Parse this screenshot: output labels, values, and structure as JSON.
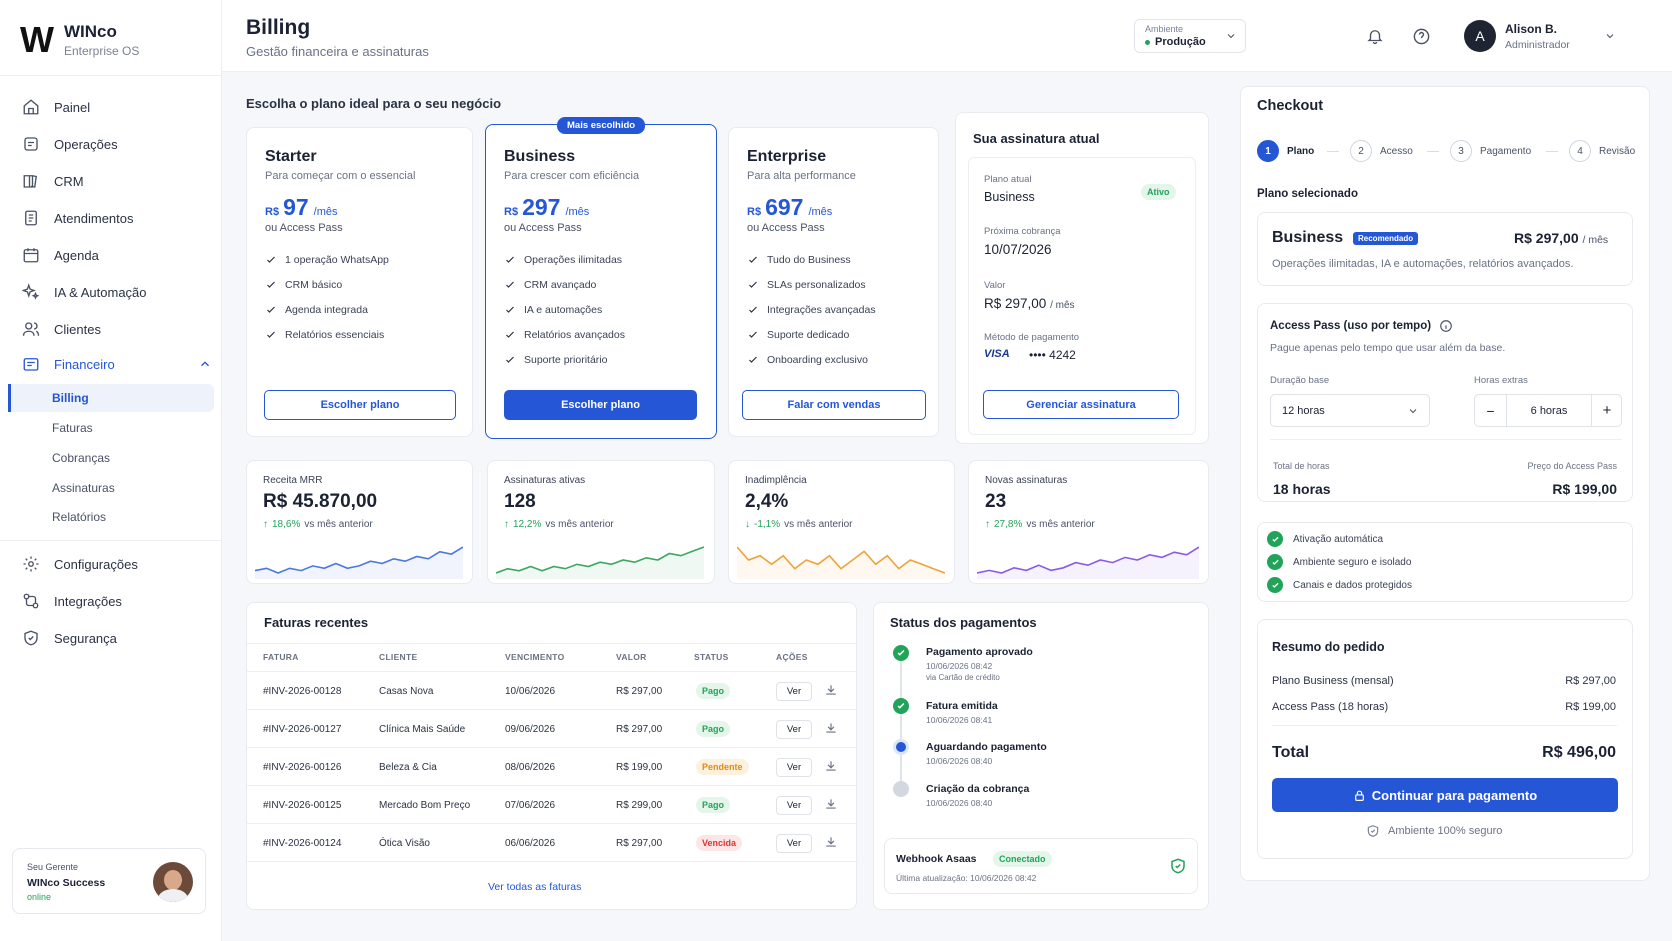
{
  "brand": {
    "name": "WINco",
    "subtitle": "Enterprise OS",
    "mark": "W"
  },
  "sidebar": {
    "items": [
      {
        "label": "Painel"
      },
      {
        "label": "Operações"
      },
      {
        "label": "CRM"
      },
      {
        "label": "Atendimentos"
      },
      {
        "label": "Agenda"
      },
      {
        "label": "IA & Automação"
      },
      {
        "label": "Clientes"
      },
      {
        "label": "Financeiro"
      }
    ],
    "sub_items": [
      {
        "label": "Billing"
      },
      {
        "label": "Faturas"
      },
      {
        "label": "Cobranças"
      },
      {
        "label": "Assinaturas"
      },
      {
        "label": "Relatórios"
      }
    ],
    "bottom_items": [
      {
        "label": "Configurações"
      },
      {
        "label": "Integrações"
      },
      {
        "label": "Segurança"
      }
    ],
    "manager": {
      "label": "Seu Gerente",
      "name": "WINco Success",
      "status": "online"
    }
  },
  "header": {
    "title": "Billing",
    "subtitle": "Gestão financeira e assinaturas",
    "env_label": "Ambiente",
    "env_value": "Produção",
    "user_initial": "A",
    "user_name": "Alison B.",
    "user_role": "Administrador"
  },
  "plans": {
    "heading": "Escolha o plano ideal para o seu negócio",
    "popular_badge": "Mais escolhido",
    "items": [
      {
        "name": "Starter",
        "desc": "Para começar com o essencial",
        "currency": "R$",
        "price": "97",
        "period": "/mês",
        "alt": "ou Access Pass",
        "features": [
          "1 operação WhatsApp",
          "CRM básico",
          "Agenda integrada",
          "Relatórios essenciais"
        ],
        "cta": "Escolher plano"
      },
      {
        "name": "Business",
        "desc": "Para crescer com eficiência",
        "currency": "R$",
        "price": "297",
        "period": "/mês",
        "alt": "ou Access Pass",
        "features": [
          "Operações ilimitadas",
          "CRM avançado",
          "IA e automações",
          "Relatórios avançados",
          "Suporte prioritário"
        ],
        "cta": "Escolher plano"
      },
      {
        "name": "Enterprise",
        "desc": "Para alta performance",
        "currency": "R$",
        "price": "697",
        "period": "/mês",
        "alt": "ou Access Pass",
        "features": [
          "Tudo do Business",
          "SLAs personalizados",
          "Integrações avançadas",
          "Suporte dedicado",
          "Onboarding exclusivo"
        ],
        "cta": "Falar com vendas"
      }
    ]
  },
  "subscription": {
    "heading": "Sua assinatura atual",
    "plan_label": "Plano atual",
    "plan_value": "Business",
    "status": "Ativo",
    "next_label": "Próxima cobrança",
    "next_value": "10/07/2026",
    "value_label": "Valor",
    "value_amount": "R$ 297,00",
    "value_period": "/ mês",
    "method_label": "Método de pagamento",
    "card_brand": "VISA",
    "card_masked": "•••• 4242",
    "cta": "Gerenciar assinatura"
  },
  "metrics": [
    {
      "label": "Receita MRR",
      "value": "R$ 45.870,00",
      "delta": "18,6%",
      "direction": "up",
      "suffix": "vs mês anterior",
      "color": "#4a78e0",
      "trend": [
        14,
        15,
        13,
        15,
        14,
        16,
        15,
        17,
        15,
        16,
        18,
        17,
        19,
        18,
        20,
        19,
        22,
        21,
        24
      ]
    },
    {
      "label": "Assinaturas ativas",
      "value": "128",
      "delta": "12,2%",
      "direction": "up",
      "suffix": "vs mês anterior",
      "color": "#3aa860",
      "trend": [
        12,
        14,
        13,
        15,
        13,
        15,
        14,
        16,
        15,
        17,
        16,
        18,
        17,
        19,
        18,
        21,
        20,
        22,
        24
      ]
    },
    {
      "label": "Inadimplência",
      "value": "2,4%",
      "delta": "-1,1%",
      "direction": "down",
      "suffix": "vs mês anterior",
      "color": "#f0a23a",
      "trend": [
        20,
        17,
        18,
        16,
        18,
        15,
        17,
        16,
        18,
        15,
        17,
        19,
        16,
        18,
        15,
        17,
        16,
        15,
        14
      ]
    },
    {
      "label": "Novas assinaturas",
      "value": "23",
      "delta": "27,8%",
      "direction": "up",
      "suffix": "vs mês anterior",
      "color": "#8a5ae6",
      "trend": [
        12,
        13,
        12,
        14,
        13,
        15,
        13,
        14,
        16,
        15,
        17,
        16,
        18,
        17,
        19,
        18,
        20,
        19,
        22
      ]
    }
  ],
  "invoices": {
    "heading": "Faturas recentes",
    "columns": [
      "FATURA",
      "CLIENTE",
      "VENCIMENTO",
      "VALOR",
      "STATUS",
      "AÇÕES"
    ],
    "rows": [
      {
        "id": "#INV-2026-00128",
        "client": "Casas Nova",
        "due": "10/06/2026",
        "value": "R$ 297,00",
        "status": "Pago",
        "tone": "green"
      },
      {
        "id": "#INV-2026-00127",
        "client": "Clínica Mais Saúde",
        "due": "09/06/2026",
        "value": "R$ 297,00",
        "status": "Pago",
        "tone": "green"
      },
      {
        "id": "#INV-2026-00126",
        "client": "Beleza & Cia",
        "due": "08/06/2026",
        "value": "R$ 199,00",
        "status": "Pendente",
        "tone": "orange"
      },
      {
        "id": "#INV-2026-00125",
        "client": "Mercado Bom Preço",
        "due": "07/06/2026",
        "value": "R$ 299,00",
        "status": "Pago",
        "tone": "green"
      },
      {
        "id": "#INV-2026-00124",
        "client": "Ótica Visão",
        "due": "06/06/2026",
        "value": "R$ 297,00",
        "status": "Vencida",
        "tone": "red"
      }
    ],
    "view_label": "Ver",
    "footer_link": "Ver todas as faturas"
  },
  "payment_status": {
    "heading": "Status dos pagamentos",
    "events": [
      {
        "title": "Pagamento aprovado",
        "time": "10/06/2026 08:42",
        "note": "via Cartão de crédito",
        "state": "done"
      },
      {
        "title": "Fatura emitida",
        "time": "10/06/2026 08:41",
        "note": "",
        "state": "done"
      },
      {
        "title": "Aguardando pagamento",
        "time": "10/06/2026 08:40",
        "note": "",
        "state": "current"
      },
      {
        "title": "Criação da cobrança",
        "time": "10/06/2026 08:40",
        "note": "",
        "state": "pending"
      }
    ],
    "webhook_name": "Webhook Asaas",
    "webhook_status": "Conectado",
    "webhook_updated": "Última atualização: 10/06/2026 08:42"
  },
  "checkout": {
    "heading": "Checkout",
    "steps": [
      {
        "n": "1",
        "label": "Plano"
      },
      {
        "n": "2",
        "label": "Acesso"
      },
      {
        "n": "3",
        "label": "Pagamento"
      },
      {
        "n": "4",
        "label": "Revisão"
      }
    ],
    "selected_label": "Plano selecionado",
    "plan_name": "Business",
    "plan_badge": "Recomendado",
    "plan_price": "R$ 297,00",
    "plan_period": "/ mês",
    "plan_desc": "Operações ilimitadas, IA e automações, relatórios avançados.",
    "access_title": "Access Pass (uso por tempo)",
    "access_desc": "Pague apenas pelo tempo que usar além da base.",
    "base_label": "Duração base",
    "base_value": "12 horas",
    "extra_label": "Horas extras",
    "extra_value": "6 horas",
    "total_hours_label": "Total de horas",
    "total_hours_value": "18 horas",
    "pass_price_label": "Preço do Access Pass",
    "pass_price_value": "R$ 199,00",
    "benefits": [
      "Ativação automática",
      "Ambiente seguro e isolado",
      "Canais e dados protegidos"
    ],
    "summary_title": "Resumo do pedido",
    "summary_rows": [
      {
        "label": "Plano Business (mensal)",
        "value": "R$ 297,00"
      },
      {
        "label": "Access Pass (18 horas)",
        "value": "R$ 199,00"
      }
    ],
    "total_label": "Total",
    "total_value": "R$ 496,00",
    "cta": "Continuar para pagamento",
    "secure_note": "Ambiente 100% seguro"
  },
  "colors": {
    "accent": "#2456d6",
    "success": "#22a35a",
    "warning": "#e08a12",
    "danger": "#d93535"
  }
}
